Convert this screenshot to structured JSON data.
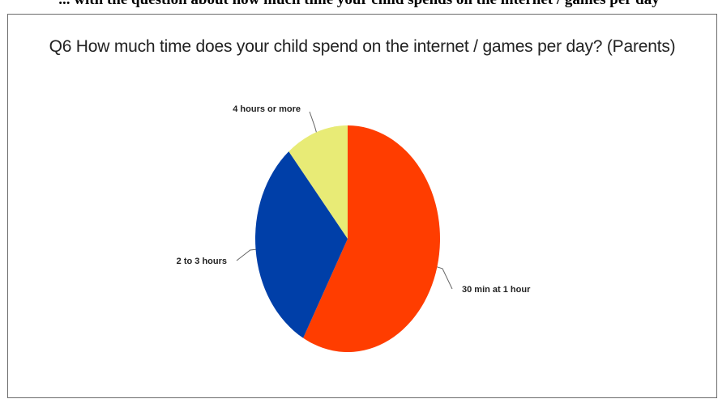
{
  "caption_fragment": "... with the question about how much time your child spends on the internet / games per day",
  "chart_data": {
    "type": "pie",
    "title": "Q6 How much time does your child spend on the internet / games per day? (Parents)",
    "slices": [
      {
        "label": "30 min at 1 hour",
        "value": 58,
        "color": "#ff3d00"
      },
      {
        "label": "2 to 3 hours",
        "value": 31,
        "color": "#003fa8"
      },
      {
        "label": "4 hours or more",
        "value": 11,
        "color": "#e8eb76"
      }
    ],
    "start_angle_deg": 0,
    "direction": "clockwise"
  }
}
